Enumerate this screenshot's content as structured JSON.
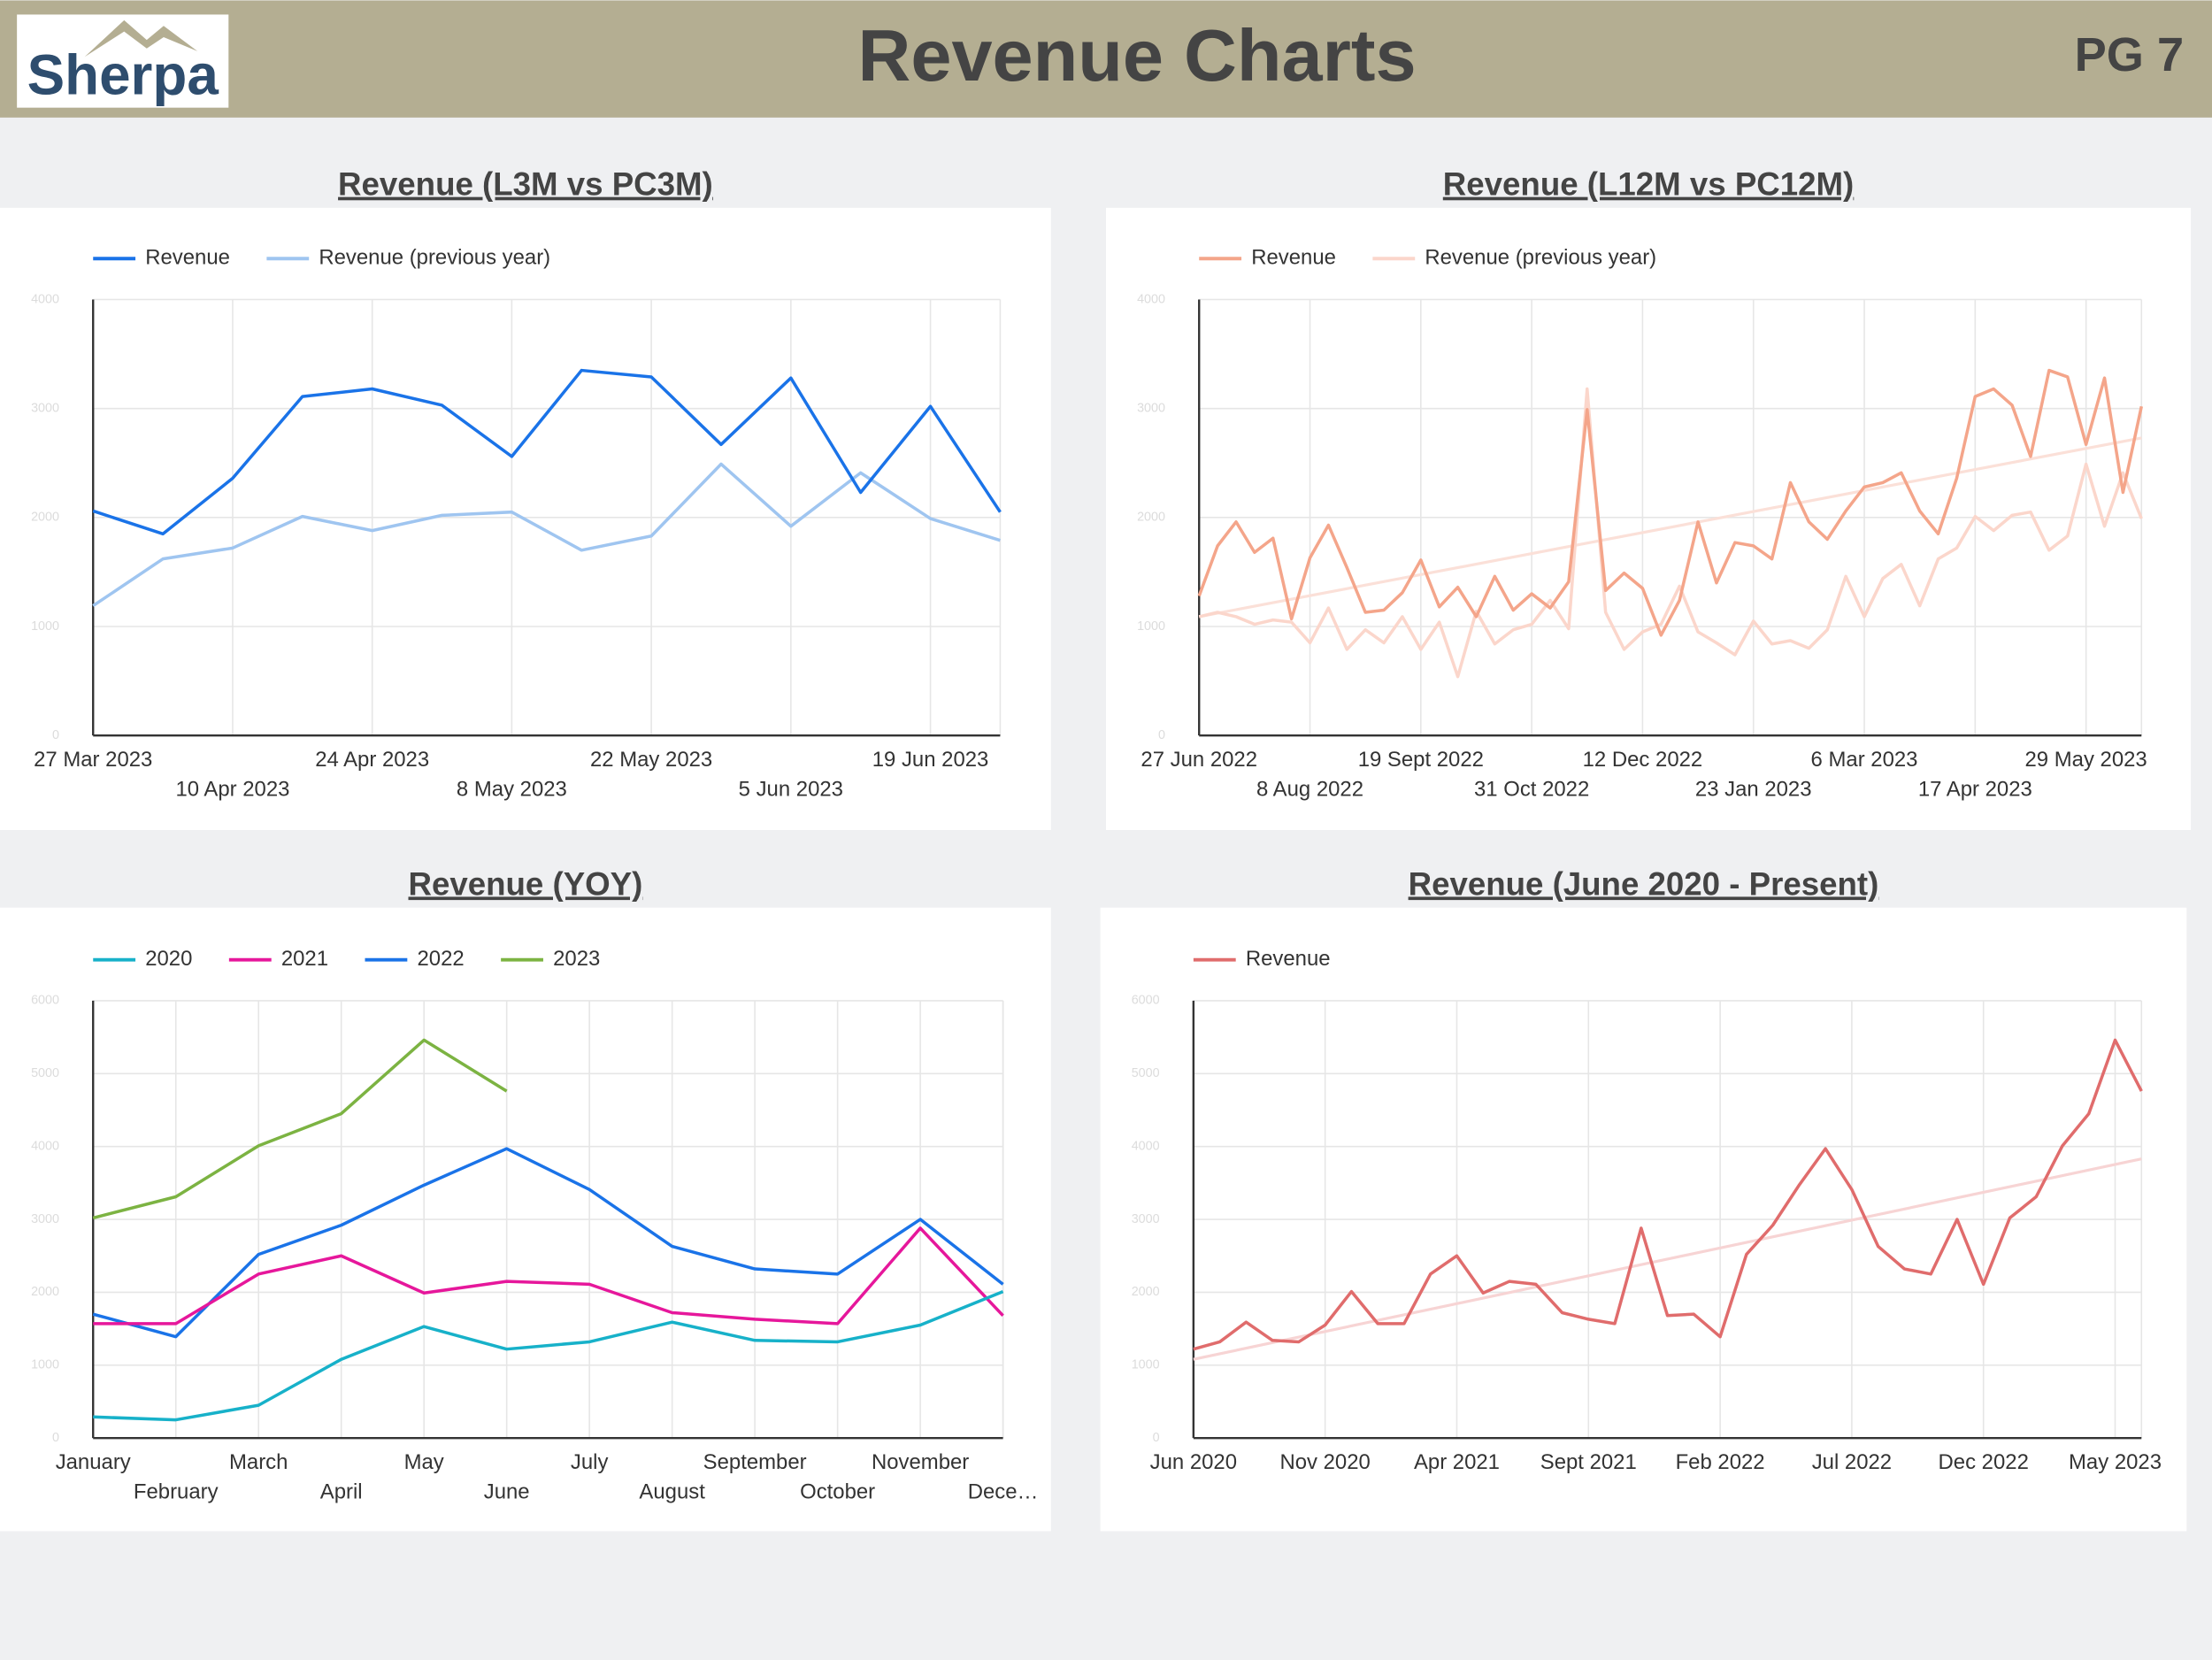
{
  "header": {
    "logo": "Sherpa",
    "title": "Revenue Charts",
    "page": "PG 7"
  },
  "chart_data": [
    {
      "type": "line",
      "title": "Revenue (L3M vs PC3M)",
      "categories": [
        "27 Mar 2023",
        null,
        "10 Apr 2023",
        null,
        "24 Apr 2023",
        null,
        "8 May 2023",
        null,
        "22 May 2023",
        null,
        "5 Jun 2023",
        null,
        "19 Jun 2023",
        null
      ],
      "series": [
        {
          "name": "Revenue",
          "color": "#1a73e8",
          "values": [
            2060,
            1850,
            2360,
            3110,
            3180,
            3030,
            2560,
            3350,
            3290,
            2670,
            3280,
            2230,
            3020,
            2050
          ]
        },
        {
          "name": "Revenue (previous year)",
          "color": "#9fc5f0",
          "values": [
            1190,
            1620,
            1720,
            2010,
            1880,
            2020,
            2050,
            1700,
            1830,
            2490,
            1920,
            2410,
            1990,
            1790
          ]
        }
      ],
      "ylim": [
        0,
        4000
      ],
      "yticks": [
        0,
        1000,
        2000,
        3000,
        4000
      ],
      "grid": true,
      "legend": "top"
    },
    {
      "type": "line",
      "title": "Revenue (L12M vs PC12M)",
      "categories": [
        "27 Jun 2022",
        null,
        null,
        null,
        null,
        null,
        "8 Aug 2022",
        null,
        null,
        null,
        null,
        null,
        "19 Sept 2022",
        null,
        null,
        null,
        null,
        null,
        "31 Oct 2022",
        null,
        null,
        null,
        null,
        null,
        "12 Dec 2022",
        null,
        null,
        null,
        null,
        null,
        "23 Jan 2023",
        null,
        null,
        null,
        null,
        null,
        "6 Mar 2023",
        null,
        null,
        null,
        null,
        null,
        "17 Apr 2023",
        null,
        null,
        null,
        null,
        null,
        "29 May 2023",
        null,
        null,
        null
      ],
      "series": [
        {
          "name": "Revenue",
          "color": "#f4a58a",
          "values": [
            1280,
            1740,
            1960,
            1680,
            1810,
            1070,
            1630,
            1930,
            1540,
            1130,
            1150,
            1310,
            1610,
            1180,
            1360,
            1090,
            1460,
            1150,
            1300,
            1170,
            1410,
            2990,
            1330,
            1490,
            1350,
            920,
            1240,
            1960,
            1400,
            1770,
            1740,
            1620,
            2320,
            1960,
            1800,
            2060,
            2280,
            2320,
            2410,
            2060,
            1850,
            2360,
            3110,
            3180,
            3030,
            2560,
            3350,
            3290,
            2670,
            3280,
            2230,
            3020
          ],
          "trendline": [
            1090,
            2730
          ],
          "trendline_color": "#fbe0d8"
        },
        {
          "name": "Revenue (previous year)",
          "color": "#fbd6cb",
          "values": [
            1090,
            1130,
            1090,
            1020,
            1060,
            1040,
            850,
            1170,
            790,
            970,
            850,
            1090,
            790,
            1040,
            540,
            1140,
            840,
            970,
            1020,
            1240,
            980,
            3180,
            1130,
            790,
            950,
            1020,
            1370,
            950,
            850,
            740,
            1050,
            840,
            870,
            800,
            970,
            1460,
            1090,
            1440,
            1570,
            1190,
            1620,
            1720,
            2010,
            1880,
            2020,
            2050,
            1700,
            1830,
            2490,
            1920,
            2410,
            1990
          ]
        }
      ],
      "ylim": [
        0,
        4000
      ],
      "yticks": [
        0,
        1000,
        2000,
        3000,
        4000
      ],
      "grid": true,
      "legend": "top"
    },
    {
      "type": "line",
      "title": "Revenue (YOY)",
      "categories": [
        "January",
        "February",
        "March",
        "April",
        "May",
        "June",
        "July",
        "August",
        "September",
        "October",
        "November",
        "Dece…"
      ],
      "series": [
        {
          "name": "2020",
          "color": "#17b1c9",
          "values": [
            290,
            250,
            450,
            1080,
            1530,
            1220,
            1320,
            1590,
            1340,
            1320,
            1550,
            2010
          ]
        },
        {
          "name": "2021",
          "color": "#e6179b",
          "values": [
            1570,
            1570,
            2250,
            2500,
            1990,
            2150,
            2110,
            1720,
            1630,
            1570,
            2880,
            1680
          ]
        },
        {
          "name": "2022",
          "color": "#1a73e8",
          "values": [
            1700,
            1390,
            2520,
            2920,
            3470,
            3970,
            3410,
            2630,
            2320,
            2250,
            3000,
            2110
          ]
        },
        {
          "name": "2023",
          "color": "#7cb342",
          "values": [
            3020,
            3310,
            4010,
            4450,
            5460,
            4760,
            null,
            null,
            null,
            null,
            null,
            null
          ]
        }
      ],
      "ylim": [
        0,
        6000
      ],
      "yticks": [
        0,
        1000,
        2000,
        3000,
        4000,
        5000,
        6000
      ],
      "grid": true,
      "legend": "top"
    },
    {
      "type": "line",
      "title": "Revenue (June 2020 - Present)",
      "categories": [
        "Jun 2020",
        null,
        null,
        null,
        null,
        "Nov 2020",
        null,
        null,
        null,
        null,
        "Apr 2021",
        null,
        null,
        null,
        null,
        "Sept 2021",
        null,
        null,
        null,
        null,
        "Feb 2022",
        null,
        null,
        null,
        null,
        "Jul 2022",
        null,
        null,
        null,
        null,
        "Dec 2022",
        null,
        null,
        null,
        null,
        "May 2023",
        null
      ],
      "series": [
        {
          "name": "Revenue",
          "color": "#e06c6c",
          "values": [
            1220,
            1320,
            1590,
            1340,
            1320,
            1550,
            2010,
            1570,
            1570,
            2250,
            2500,
            1990,
            2150,
            2110,
            1720,
            1630,
            1570,
            2880,
            1680,
            1700,
            1390,
            2520,
            2920,
            3470,
            3970,
            3410,
            2630,
            2320,
            2250,
            3000,
            2110,
            3020,
            3310,
            4010,
            4450,
            5460,
            4760
          ],
          "trendline": [
            1080,
            3830
          ],
          "trendline_color": "#f7d4d4"
        }
      ],
      "ylim": [
        0,
        6000
      ],
      "yticks": [
        0,
        1000,
        2000,
        3000,
        4000,
        5000,
        6000
      ],
      "grid": true,
      "legend": "top"
    }
  ]
}
